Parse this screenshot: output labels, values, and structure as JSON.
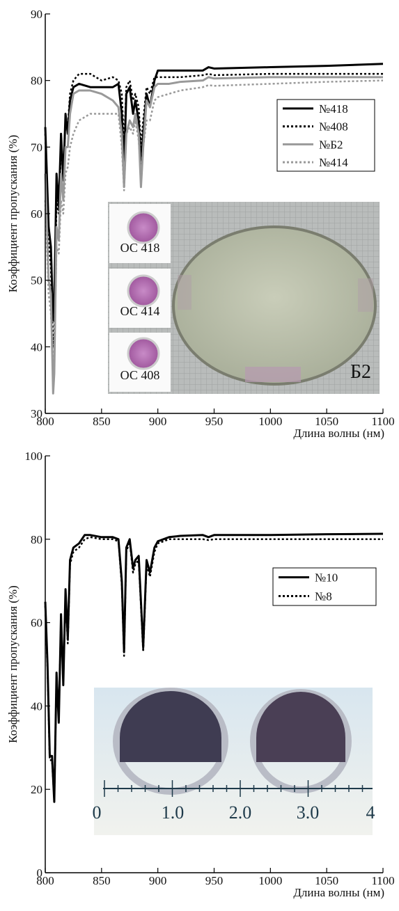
{
  "chart_data": [
    {
      "type": "line",
      "x_label": "Длина волны (нм)",
      "y_label": "Коэффициент пропускания (%)",
      "x": [
        800,
        803,
        805,
        807,
        808,
        810,
        812,
        814,
        816,
        818,
        820,
        822,
        825,
        830,
        840,
        850,
        860,
        865,
        868,
        870,
        872,
        875,
        878,
        880,
        883,
        885,
        887,
        890,
        893,
        897,
        900,
        910,
        920,
        940,
        945,
        950,
        1000,
        1050,
        1100
      ],
      "series": [
        {
          "name": "№418",
          "color": "#000000",
          "style": "solid",
          "values": [
            73,
            58,
            55,
            44,
            46,
            66,
            61,
            72,
            65,
            75,
            72,
            77,
            79,
            79.5,
            79,
            79,
            79,
            79.5,
            75,
            67,
            78,
            79,
            75,
            77,
            74,
            67,
            72,
            78,
            76,
            80,
            81.5,
            81.5,
            81.5,
            81.5,
            82,
            81.8,
            82,
            82.2,
            82.5
          ]
        },
        {
          "name": "№408",
          "color": "#000000",
          "style": "dotted",
          "values": [
            72,
            56,
            52,
            40,
            42,
            62,
            60,
            70,
            66,
            74,
            73,
            78,
            80,
            81,
            81,
            80,
            80.5,
            80,
            78,
            70,
            79,
            80,
            77,
            78,
            76,
            70,
            74,
            79,
            78,
            80.5,
            80.5,
            80.5,
            80.5,
            80.8,
            81,
            80.8,
            81,
            81,
            81
          ]
        },
        {
          "name": "№Б2",
          "color": "#999999",
          "style": "solid",
          "values": [
            66,
            50,
            48,
            33,
            36,
            58,
            56,
            66,
            62,
            70,
            70,
            75,
            78,
            78.5,
            78.5,
            78,
            77,
            76,
            72,
            64,
            72,
            74,
            73,
            75,
            72,
            64,
            70,
            77,
            76,
            79,
            79.5,
            79.5,
            79.8,
            80,
            80.5,
            80.3,
            80.5,
            80.5,
            80.5
          ]
        },
        {
          "name": "№414",
          "color": "#999999",
          "style": "dotted",
          "values": [
            62,
            48,
            45,
            38,
            39,
            55,
            54,
            62,
            60,
            66,
            67,
            70,
            72,
            74,
            75,
            75,
            75,
            75,
            70,
            63.5,
            72,
            73,
            72,
            74,
            71,
            66,
            70,
            74,
            74,
            77,
            77.5,
            78,
            78.5,
            79,
            79.3,
            79.2,
            79.5,
            79.8,
            80
          ]
        }
      ],
      "xlim": [
        800,
        1100
      ],
      "xticks": [
        800,
        850,
        900,
        950,
        1000,
        1050,
        1100
      ],
      "ylim": [
        30,
        90
      ],
      "yticks": [
        30,
        40,
        50,
        60,
        70,
        80,
        90
      ],
      "inset_labels": [
        "ОС 418",
        "ОС 414",
        "ОС 408",
        "Б2"
      ]
    },
    {
      "type": "line",
      "x_label": "Длина волны (нм)",
      "y_label": "Коэффициент пропускания (%)",
      "x": [
        800,
        802,
        804,
        806,
        808,
        810,
        812,
        814,
        816,
        818,
        820,
        822,
        825,
        830,
        835,
        840,
        850,
        860,
        865,
        868,
        870,
        872,
        875,
        878,
        880,
        883,
        885,
        887,
        890,
        893,
        897,
        900,
        910,
        920,
        940,
        945,
        950,
        1000,
        1050,
        1100
      ],
      "series": [
        {
          "name": "№10",
          "color": "#000000",
          "style": "solid",
          "values": [
            65,
            50,
            28,
            28,
            17,
            48,
            36,
            62,
            45,
            68,
            56,
            75,
            78,
            79,
            81,
            81,
            80.5,
            80.5,
            80,
            70,
            53,
            78,
            80,
            73,
            75,
            76,
            65,
            54,
            75,
            72,
            78,
            79.5,
            80.5,
            80.8,
            81,
            80.5,
            81,
            81,
            81.2,
            81.3
          ]
        },
        {
          "name": "№8",
          "color": "#000000",
          "style": "dotted",
          "values": [
            64,
            49,
            27,
            27,
            17.5,
            47,
            37,
            61,
            46,
            67,
            55,
            74,
            77,
            78,
            80,
            80.5,
            80,
            80,
            79.5,
            69,
            52,
            77,
            79.5,
            72,
            74,
            75,
            64,
            53,
            74,
            71,
            77,
            79,
            80,
            80,
            80,
            79.8,
            80,
            80,
            80,
            80
          ]
        }
      ],
      "xlim": [
        800,
        1100
      ],
      "xticks": [
        800,
        850,
        900,
        950,
        1000,
        1050,
        1100
      ],
      "ylim": [
        0,
        100
      ],
      "yticks": [
        0,
        20,
        40,
        60,
        80,
        100
      ],
      "inset_labels": [
        "0",
        "1.0",
        "2.0",
        "3.0",
        "4"
      ]
    }
  ]
}
